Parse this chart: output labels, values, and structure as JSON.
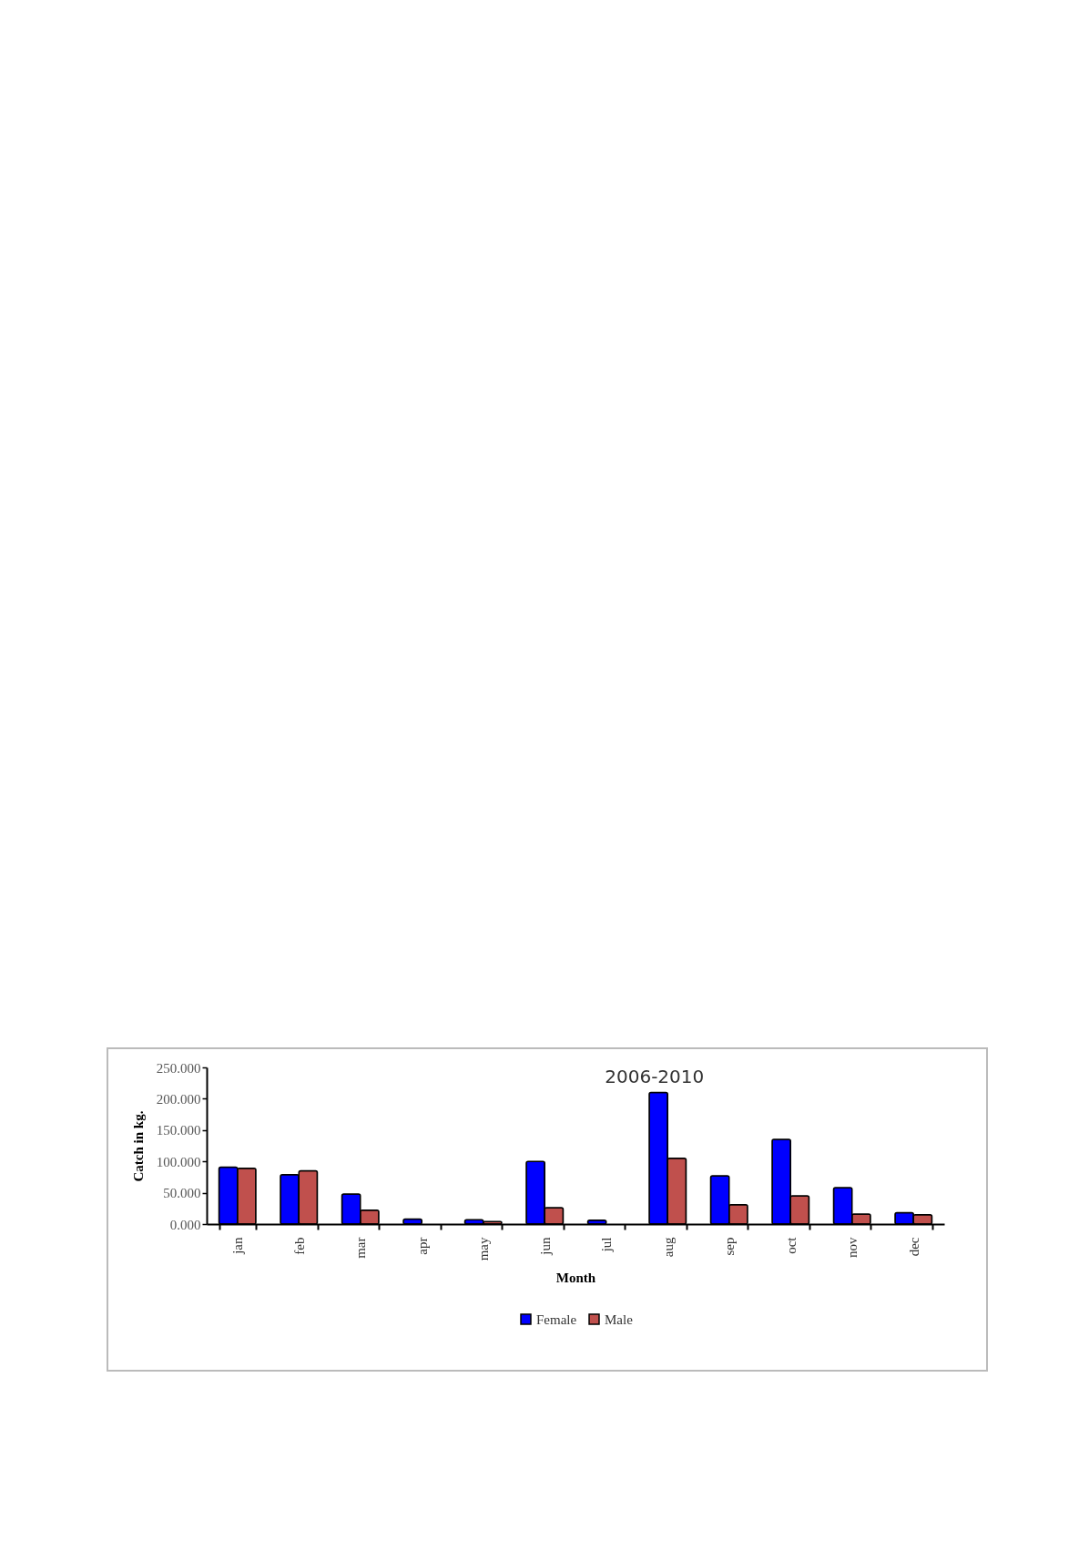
{
  "chart_data": {
    "type": "bar",
    "title": "2006-2010",
    "xlabel": "Month",
    "ylabel": "Catch in kg.",
    "categories": [
      "jan",
      "feb",
      "mar",
      "apr",
      "may",
      "jun",
      "jul",
      "aug",
      "sep",
      "oct",
      "nov",
      "dec"
    ],
    "series": [
      {
        "name": "Female",
        "color": "#0000ff",
        "values": [
          91,
          79,
          48,
          8,
          7,
          100,
          6,
          210,
          77,
          135,
          58,
          18
        ]
      },
      {
        "name": "Male",
        "color": "#c0504d",
        "values": [
          89,
          85,
          22,
          null,
          4,
          26,
          null,
          105,
          31,
          45,
          16,
          15
        ]
      }
    ],
    "ylim": [
      0,
      250
    ],
    "yticks": [
      {
        "value": 0,
        "label": "0.000"
      },
      {
        "value": 50,
        "label": "50.000"
      },
      {
        "value": 100,
        "label": "100.000"
      },
      {
        "value": 150,
        "label": "150.000"
      },
      {
        "value": 200,
        "label": "200.000"
      },
      {
        "value": 250,
        "label": "250.000"
      }
    ],
    "grid": false,
    "legend": "bottom"
  }
}
